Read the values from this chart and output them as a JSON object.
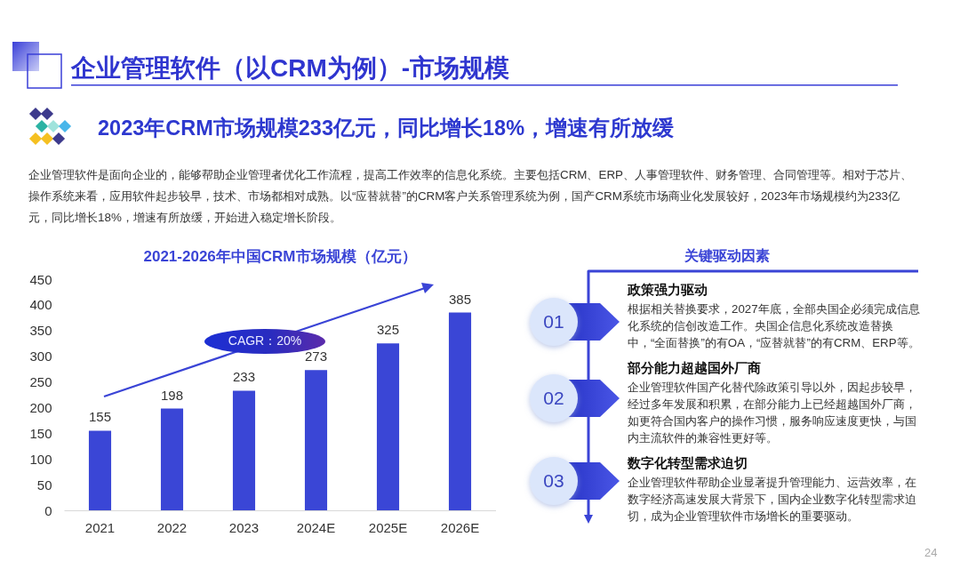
{
  "chart_data": [
    {
      "type": "bar",
      "title": "2021-2026年中国CRM市场规模（亿元）",
      "categories": [
        "2021",
        "2022",
        "2023",
        "2024E",
        "2025E",
        "2026E"
      ],
      "values": [
        155,
        198,
        233,
        273,
        325,
        385
      ],
      "color": "#3a46d6",
      "ylim": [
        0,
        450
      ],
      "yticks": [
        0,
        50,
        100,
        150,
        200,
        250,
        300,
        350,
        400,
        450
      ],
      "data_labels": true,
      "annotations": [
        "企业管理软件（以CRM为例）-市场规模",
        "2023年CRM市场规模233亿元，同比增长18%，增速有所放缓",
        "企业管理软件是面向企业的，能够帮助企业管理者优化工作流程，提高工作效率的信息化系统。主要包括CRM、ERP、人事管理软件、财务管理、合同管理等。相对于芯片、操作系统来看，应用软件起步较早，技术、市场都相对成熟。以“应替就替”的CRM客户关系管理系统为例，国产CRM系统市场商业化发展较好，2023年市场规模约为233亿元，同比增长18%，增速有所放缓，开始进入稳定增长阶段。",
        "CAGR：20%",
        "24"
      ]
    },
    {
      "type": "other",
      "title": "关键驱动因素",
      "annotations": [
        "01",
        "政策强力驱动",
        "根据相关替换要求，2027年底，全部央国企必须完成信息化系统的信创改造工作。央国企信息化系统改造替换中，“全面替换”的有OA，“应替就替”的有CRM、ERP等。",
        "02",
        "部分能力超越国外厂商",
        "企业管理软件国产化替代除政策引导以外，因起步较早，经过多年发展和积累，在部分能力上已经超越国外厂商，如更符合国内客户的操作习惯，服务响应速度更快，与国内主流软件的兼容性更好等。",
        "03",
        "数字化转型需求迫切",
        "企业管理软件帮助企业显著提升管理能力、运营效率，在数字经济高速发展大背景下，国内企业数字化转型需求迫切，成为企业管理软件市场增长的重要驱动。"
      ]
    }
  ]
}
